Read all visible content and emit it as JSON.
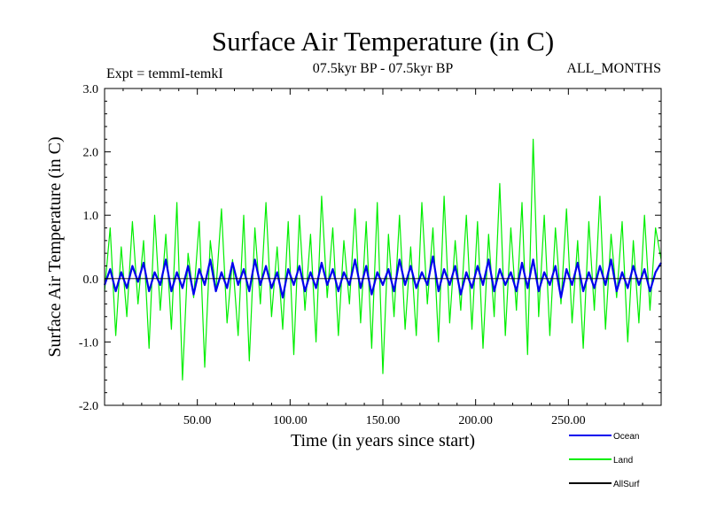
{
  "chart_data": {
    "type": "line",
    "title": "Surface Air Temperature (in C)",
    "subtitle_left": "Expt = temmI-temkI",
    "subtitle_center": "07.5kyr BP - 07.5kyr BP",
    "subtitle_right": "ALL_MONTHS",
    "xlabel": "Time (in years since start)",
    "ylabel": "Surface Air Temperature (in C)",
    "xlim": [
      0,
      300
    ],
    "ylim": [
      -2.0,
      3.0
    ],
    "x_ticks": [
      50,
      100,
      150,
      200,
      250
    ],
    "x_tick_labels": [
      "50.00",
      "100.00",
      "150.00",
      "200.00",
      "250.00"
    ],
    "y_ticks": [
      -2.0,
      -1.0,
      0.0,
      1.0,
      2.0,
      3.0
    ],
    "y_tick_labels": [
      "-2.0",
      "-1.0",
      "0.0",
      "1.0",
      "2.0",
      "3.0"
    ],
    "legend_position": "bottom-right outside",
    "series": [
      {
        "name": "Land",
        "color": "#00ee00",
        "x": [
          0,
          3,
          6,
          9,
          12,
          15,
          18,
          21,
          24,
          27,
          30,
          33,
          36,
          39,
          42,
          45,
          48,
          51,
          54,
          57,
          60,
          63,
          66,
          69,
          72,
          75,
          78,
          81,
          84,
          87,
          90,
          93,
          96,
          99,
          102,
          105,
          108,
          111,
          114,
          117,
          120,
          123,
          126,
          129,
          132,
          135,
          138,
          141,
          144,
          147,
          150,
          153,
          156,
          159,
          162,
          165,
          168,
          171,
          174,
          177,
          180,
          183,
          186,
          189,
          192,
          195,
          198,
          201,
          204,
          207,
          210,
          213,
          216,
          219,
          222,
          225,
          228,
          231,
          234,
          237,
          240,
          243,
          246,
          249,
          252,
          255,
          258,
          261,
          264,
          267,
          270,
          273,
          276,
          279,
          282,
          285,
          288,
          291,
          294,
          297,
          300
        ],
        "values": [
          -0.2,
          0.8,
          -0.9,
          0.5,
          -0.6,
          0.9,
          -0.4,
          0.6,
          -1.1,
          1.0,
          -0.5,
          0.7,
          -0.8,
          1.2,
          -1.6,
          0.4,
          -0.3,
          0.9,
          -1.4,
          0.6,
          -0.2,
          1.1,
          -0.7,
          0.3,
          -0.9,
          1.0,
          -1.3,
          0.8,
          -0.4,
          1.2,
          -0.6,
          0.5,
          -0.8,
          0.9,
          -1.2,
          1.0,
          -0.5,
          0.7,
          -1.0,
          1.3,
          -0.3,
          0.8,
          -0.9,
          0.6,
          -0.4,
          1.1,
          -0.7,
          0.9,
          -1.1,
          1.2,
          -1.5,
          0.7,
          -0.6,
          1.0,
          -0.8,
          0.5,
          -0.9,
          1.2,
          -0.4,
          0.8,
          -1.0,
          1.3,
          -0.7,
          0.6,
          -0.5,
          1.0,
          -0.8,
          0.9,
          -1.1,
          0.7,
          -0.6,
          1.5,
          -0.9,
          0.8,
          -0.5,
          1.2,
          -1.2,
          2.2,
          -0.6,
          1.0,
          -0.9,
          0.8,
          -0.4,
          1.1,
          -0.7,
          0.6,
          -1.1,
          0.9,
          -0.5,
          1.3,
          -0.8,
          0.7,
          -0.3,
          0.9,
          -1.0,
          0.6,
          -0.7,
          1.0,
          -0.5,
          0.8,
          0.3
        ]
      },
      {
        "name": "Ocean",
        "color": "#0000ee",
        "x": [
          0,
          3,
          6,
          9,
          12,
          15,
          18,
          21,
          24,
          27,
          30,
          33,
          36,
          39,
          42,
          45,
          48,
          51,
          54,
          57,
          60,
          63,
          66,
          69,
          72,
          75,
          78,
          81,
          84,
          87,
          90,
          93,
          96,
          99,
          102,
          105,
          108,
          111,
          114,
          117,
          120,
          123,
          126,
          129,
          132,
          135,
          138,
          141,
          144,
          147,
          150,
          153,
          156,
          159,
          162,
          165,
          168,
          171,
          174,
          177,
          180,
          183,
          186,
          189,
          192,
          195,
          198,
          201,
          204,
          207,
          210,
          213,
          216,
          219,
          222,
          225,
          228,
          231,
          234,
          237,
          240,
          243,
          246,
          249,
          252,
          255,
          258,
          261,
          264,
          267,
          270,
          273,
          276,
          279,
          282,
          285,
          288,
          291,
          294,
          297,
          300
        ],
        "values": [
          -0.1,
          0.15,
          -0.2,
          0.1,
          -0.15,
          0.2,
          -0.05,
          0.25,
          -0.2,
          0.1,
          -0.1,
          0.3,
          -0.2,
          0.1,
          -0.15,
          0.2,
          -0.25,
          0.15,
          -0.1,
          0.3,
          -0.2,
          0.1,
          -0.15,
          0.25,
          -0.1,
          0.15,
          -0.2,
          0.3,
          -0.1,
          0.2,
          -0.15,
          0.1,
          -0.3,
          0.15,
          -0.1,
          0.2,
          -0.2,
          0.1,
          -0.15,
          0.25,
          -0.1,
          0.15,
          -0.2,
          0.1,
          -0.1,
          0.3,
          -0.15,
          0.2,
          -0.25,
          0.1,
          -0.1,
          0.15,
          -0.2,
          0.3,
          -0.1,
          0.2,
          -0.15,
          0.1,
          -0.1,
          0.35,
          -0.2,
          0.15,
          -0.1,
          0.2,
          -0.25,
          0.1,
          -0.15,
          0.2,
          -0.1,
          0.3,
          -0.2,
          0.15,
          -0.1,
          0.1,
          -0.2,
          0.25,
          -0.15,
          0.3,
          -0.2,
          0.1,
          -0.1,
          0.2,
          -0.3,
          0.15,
          -0.1,
          0.25,
          -0.2,
          0.1,
          -0.15,
          0.2,
          -0.1,
          0.3,
          -0.2,
          0.1,
          -0.15,
          0.2,
          -0.1,
          0.15,
          -0.2,
          0.1,
          0.25
        ]
      },
      {
        "name": "AllSurf",
        "color": "#000000",
        "x": [],
        "values": []
      }
    ]
  }
}
